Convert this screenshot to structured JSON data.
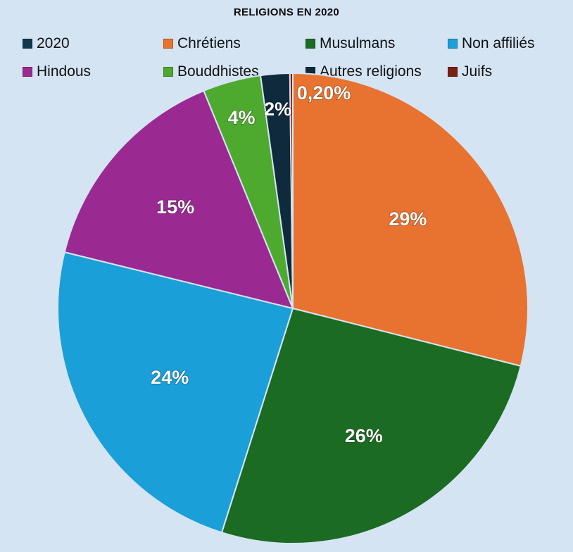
{
  "chart_data": {
    "type": "pie",
    "title": "RELIGIONS EN 2020",
    "legend_position": "top",
    "legend": [
      {
        "label": "2020",
        "color": "#12384f"
      },
      {
        "label": "Chrétiens",
        "color": "#e8722f"
      },
      {
        "label": "Musulmans",
        "color": "#1c6b23"
      },
      {
        "label": "Non affiliés",
        "color": "#1a9fd8"
      },
      {
        "label": "Hindous",
        "color": "#9a2a92"
      },
      {
        "label": "Bouddhistes",
        "color": "#4eaa2f"
      },
      {
        "label": "Autres religions",
        "color": "#0e2a3c"
      },
      {
        "label": "Juifs",
        "color": "#7a2312"
      }
    ],
    "slices": [
      {
        "name": "Chrétiens",
        "value": 29,
        "label": "29%",
        "color": "#e8722f"
      },
      {
        "name": "Musulmans",
        "value": 26,
        "label": "26%",
        "color": "#1c6b23"
      },
      {
        "name": "Non affiliés",
        "value": 24,
        "label": "24%",
        "color": "#1a9fd8"
      },
      {
        "name": "Hindous",
        "value": 15,
        "label": "15%",
        "color": "#9a2a92"
      },
      {
        "name": "Bouddhistes",
        "value": 4,
        "label": "4%",
        "color": "#4eaa2f"
      },
      {
        "name": "Autres religions",
        "value": 2,
        "label": "2%",
        "color": "#0e2a3c"
      },
      {
        "name": "Juifs",
        "value": 0.2,
        "label": "0,20%",
        "color": "#7a2312"
      }
    ]
  }
}
